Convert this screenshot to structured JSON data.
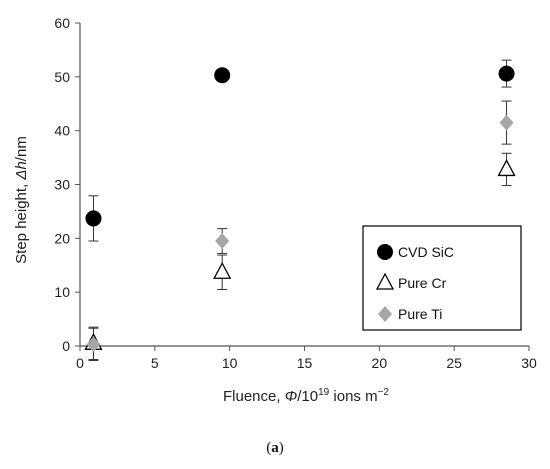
{
  "caption": {
    "open": "(",
    "letter": "a",
    "close": ")"
  },
  "chart_data": {
    "type": "scatter",
    "xlabel": {
      "pre": "Fluence, ",
      "sym": "Φ",
      "mid": "/10",
      "sup": "19",
      "post": " ions m",
      "sup2": "−2"
    },
    "ylabel": {
      "pre": "Step height, ",
      "sym": "Δh",
      "post": "/nm"
    },
    "xlim": [
      0,
      30
    ],
    "ylim": [
      0,
      60
    ],
    "xticks": [
      0,
      5,
      10,
      15,
      20,
      25,
      30
    ],
    "yticks": [
      0,
      10,
      20,
      30,
      40,
      50,
      60
    ],
    "grid": false,
    "legend_position": "bottom-right",
    "series": [
      {
        "name": "CVD SiC",
        "marker": "circle-filled",
        "color": "#000000",
        "x": [
          0.9,
          9.5,
          28.5
        ],
        "y": [
          23.7,
          50.3,
          50.6
        ],
        "err": [
          4.2,
          0,
          2.5
        ]
      },
      {
        "name": "Pure Cr",
        "marker": "triangle-open",
        "color": "#000000",
        "x": [
          0.9,
          9.5,
          28.5
        ],
        "y": [
          0.5,
          13.7,
          32.8
        ],
        "err": [
          3.0,
          3.2,
          3.0
        ]
      },
      {
        "name": "Pure Ti",
        "marker": "diamond-filled",
        "color": "#a6a6a6",
        "x": [
          0.9,
          9.5,
          28.5
        ],
        "y": [
          0.3,
          19.5,
          41.5
        ],
        "err": [
          3.0,
          2.3,
          4.0
        ]
      }
    ]
  }
}
